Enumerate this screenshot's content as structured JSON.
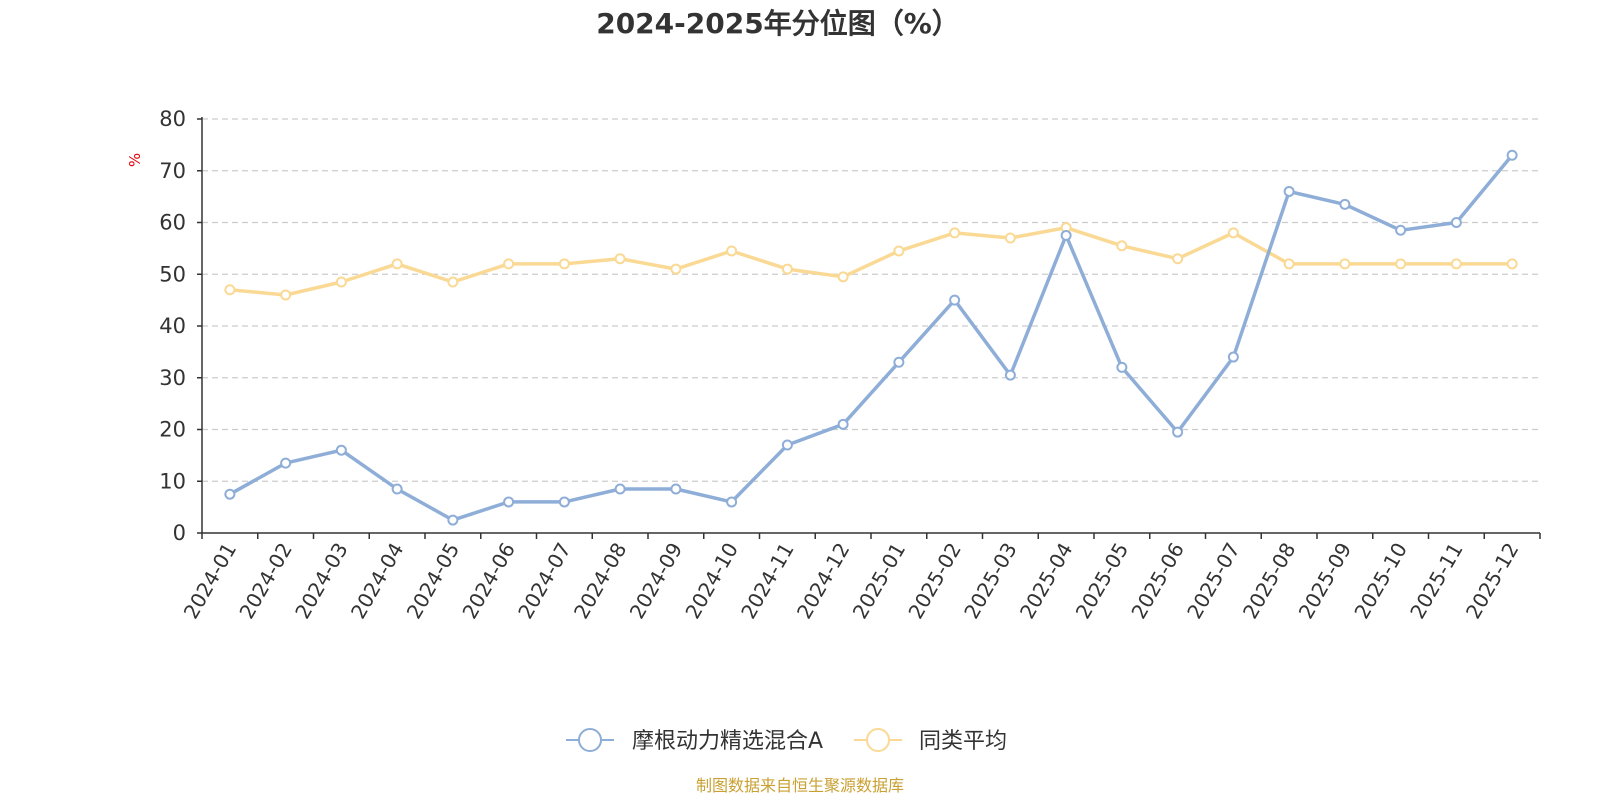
{
  "chart_data": {
    "type": "line",
    "title": "2024-2025年分位图（%）",
    "ylabel": "%",
    "ylim": [
      0,
      80
    ],
    "yticks": [
      0,
      10,
      20,
      30,
      40,
      50,
      60,
      70,
      80
    ],
    "grid": true,
    "legend_position": "bottom-center",
    "categories": [
      "2024-01",
      "2024-02",
      "2024-03",
      "2024-04",
      "2024-05",
      "2024-06",
      "2024-07",
      "2024-08",
      "2024-09",
      "2024-10",
      "2024-11",
      "2024-12",
      "2025-01",
      "2025-02",
      "2025-03",
      "2025-04",
      "2025-05",
      "2025-06",
      "2025-07",
      "2025-08",
      "2025-09",
      "2025-10",
      "2025-11",
      "2025-12"
    ],
    "series": [
      {
        "name": "摩根动力精选混合A",
        "color": "#8eaed8",
        "values": [
          7.5,
          13.5,
          16,
          8.5,
          2.5,
          6,
          6,
          8.5,
          8.5,
          6,
          17,
          21,
          33,
          45,
          30.5,
          57.5,
          32,
          19.5,
          34,
          66,
          63.5,
          58.5,
          60,
          73
        ]
      },
      {
        "name": "同类平均",
        "color": "#fad994",
        "values": [
          47,
          46,
          48.5,
          52,
          48.5,
          52,
          52,
          53,
          51,
          54.5,
          51,
          49.5,
          54.5,
          58,
          57,
          59,
          55.5,
          53,
          58,
          52,
          52,
          52,
          52,
          52
        ]
      }
    ]
  },
  "source_text": "制图数据来自恒生聚源数据库",
  "colors": {
    "unit_label": "#e8000b",
    "source_text": "#c9a033",
    "axis": "#333333",
    "grid": "#cccccc"
  },
  "legend_icon": "circle-line-marker"
}
